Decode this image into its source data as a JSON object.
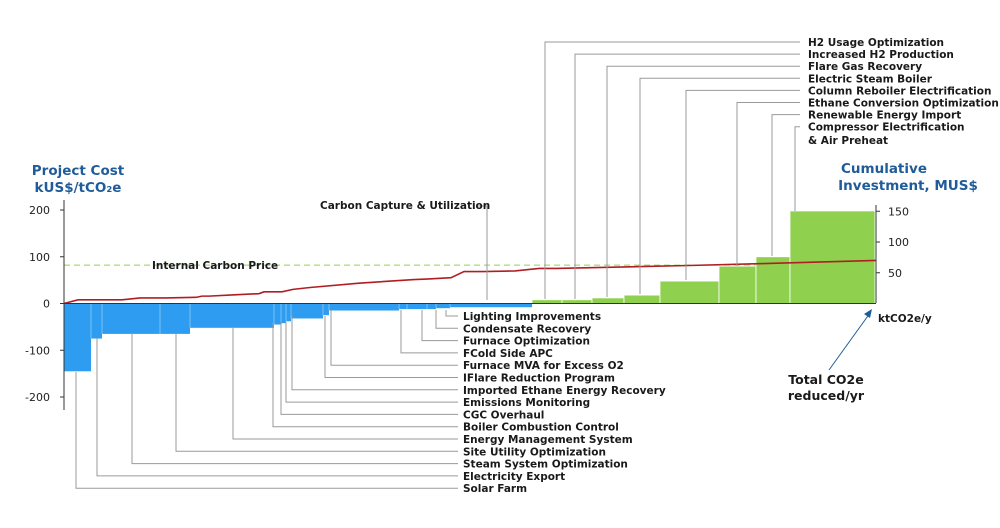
{
  "chart_data": {
    "type": "bar",
    "left_axis_title": [
      "Project Cost",
      "kUS$/tCO₂e"
    ],
    "right_axis_title": [
      "Cumulative",
      "Investment, MUS$"
    ],
    "x_unit_label": "ktCO2e/y",
    "left_axis": {
      "ylim": [
        -230,
        230
      ],
      "ticks": [
        200,
        100,
        0,
        -100,
        -200
      ],
      "tick_labels": [
        "200",
        "100",
        "0",
        "-100",
        "-200"
      ]
    },
    "right_axis": {
      "ylim": [
        -75,
        175
      ],
      "ticks": [
        150,
        100,
        50
      ],
      "tick_labels": [
        "150",
        "100",
        "50"
      ]
    },
    "internal_carbon_price": {
      "label": "Internal Carbon Price",
      "value": 65
    },
    "carbon_capture_label": "Carbon Capture & Utilization",
    "total_annotation": [
      "Total CO2e",
      "reduced/yr"
    ],
    "colors": {
      "negative": "#2e9cf0",
      "positive": "#8fd14f",
      "line": "#b01e23",
      "price": "#8fd14f",
      "title": "#1f5c99"
    },
    "negative_projects": [
      {
        "name": "Solar Farm",
        "cost": -145,
        "width": 27
      },
      {
        "name": "Electricity Export",
        "cost": -75,
        "width": 11
      },
      {
        "name": "Steam System Optimization",
        "cost": -65,
        "width": 58
      },
      {
        "name": "Site Utility Optimization",
        "cost": -65,
        "width": 30
      },
      {
        "name": "Energy Management System",
        "cost": -52,
        "width": 84
      },
      {
        "name": "Boiler Combustion Control",
        "cost": -45,
        "width": 7
      },
      {
        "name": "CGC Overhaul",
        "cost": -42,
        "width": 5
      },
      {
        "name": "Emissions Monitoring",
        "cost": -38,
        "width": 5
      },
      {
        "name": "Imported Ethane Energy Recovery",
        "cost": -32,
        "width": 32
      },
      {
        "name": "IFlare Reduction Program",
        "cost": -25,
        "width": 6
      },
      {
        "name": "Furnace MVA for Excess O2",
        "cost": -15,
        "width": 70
      },
      {
        "name": "FCold Side APC",
        "cost": -12,
        "width": 8
      },
      {
        "name": "Furnace Optimization",
        "cost": -12,
        "width": 20
      },
      {
        "name": "Condensate Recovery",
        "cost": -12,
        "width": 9
      },
      {
        "name": "Lighting Improvements",
        "cost": -10,
        "width": 14
      },
      {
        "name": "Carbon Capture & Utilization",
        "cost": -8,
        "width": 82
      }
    ],
    "positive_projects": [
      {
        "name": "H2 Usage Optimization",
        "cost": 8,
        "width": 30
      },
      {
        "name": "Increased H2 Production",
        "cost": 8,
        "width": 30
      },
      {
        "name": "Flare Gas Recovery",
        "cost": 12,
        "width": 32
      },
      {
        "name": "Electric Steam Boiler",
        "cost": 18,
        "width": 36
      },
      {
        "name": "Column Reboiler Electrification",
        "cost": 48,
        "width": 59
      },
      {
        "name": "Ethane Conversion Optimization",
        "cost": 80,
        "width": 37
      },
      {
        "name": "Renewable Energy Import",
        "cost": 100,
        "width": 34
      },
      {
        "name": "Compressor Electrification & Air Preheat",
        "cost": 198,
        "width": 85
      }
    ],
    "cumulative_investment": [
      [
        0,
        0
      ],
      [
        14,
        6
      ],
      [
        26,
        6
      ],
      [
        58,
        6
      ],
      [
        76,
        9
      ],
      [
        102,
        9
      ],
      [
        132,
        10
      ],
      [
        138,
        12
      ],
      [
        145,
        12
      ],
      [
        168,
        14
      ],
      [
        195,
        16
      ],
      [
        200,
        19
      ],
      [
        218,
        19
      ],
      [
        229,
        23
      ],
      [
        246,
        26
      ],
      [
        295,
        33
      ],
      [
        350,
        39
      ],
      [
        365,
        40
      ],
      [
        387,
        42
      ],
      [
        400,
        52
      ],
      [
        419,
        52
      ],
      [
        451,
        53
      ],
      [
        475,
        57
      ],
      [
        492,
        57
      ],
      [
        630,
        62
      ],
      [
        700,
        65
      ],
      [
        812,
        70
      ]
    ]
  },
  "labels": {
    "lower_callouts": [
      "Lighting Improvements",
      "Condensate Recovery",
      "Furnace Optimization",
      "FCold Side APC",
      "Furnace MVA for Excess O2",
      "IFlare Reduction Program",
      "Imported Ethane Energy Recovery",
      "Emissions Monitoring",
      "CGC Overhaul",
      "Boiler Combustion Control",
      "Energy Management System",
      "Site Utility Optimization",
      "Steam System Optimization",
      "Electricity Export",
      "Solar Farm"
    ],
    "upper_callouts": [
      "H2 Usage Optimization",
      "Increased H2 Production",
      "Flare Gas Recovery",
      "Electric Steam Boiler",
      "Column Reboiler Electrification",
      "Ethane Conversion Optimization",
      "Renewable Energy Import",
      "Compressor Electrification",
      "& Air Preheat"
    ]
  }
}
